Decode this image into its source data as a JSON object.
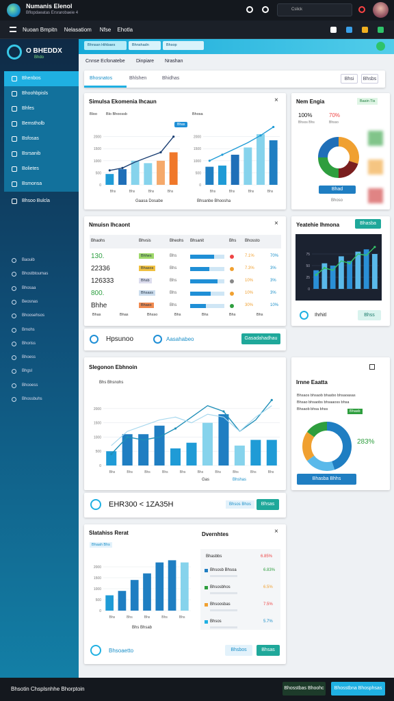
{
  "header": {
    "title": "Numanis Elenol",
    "subtitle": "Bflopdaeatas Ersrarobaeie 4",
    "search": "Cslick"
  },
  "menu": [
    "Nuoan Bmpitn",
    "Nelasatiom",
    "Nfse",
    "Ehotla"
  ],
  "sidebar": {
    "brand": "O BHEDDX",
    "brand_sub": "Bhdo",
    "items": [
      "Bhenbos",
      "Bhoohbpisls",
      "Bhfes",
      "Bemstholb",
      "Bsfosas",
      "Bsrsanib",
      "Bolietes",
      "Bsmonsa",
      "Bhsoo Bulcla"
    ],
    "items2": [
      "Baouib",
      "Bhostbtoumas",
      "Bhosaa",
      "Beosnas",
      "Bhoosehsos",
      "Bmohs",
      "Bhoriss",
      "Bhoess",
      "Bhgsl",
      "Bhooess",
      "Bhossbuhs"
    ]
  },
  "top_tabs": [
    "Bhnsan Hihbaes",
    "Bhnshadn",
    "Bhsop"
  ],
  "breadcrumb": [
    "Cnnse Ecfonatebe",
    "Dinpiare",
    "Nrashan"
  ],
  "tabs": [
    "Bhosnatos",
    "Bhlshen",
    "Bhidhas"
  ],
  "tab_buttons": [
    "Bhsi",
    "Bhsbs"
  ],
  "card1": {
    "title": "Simulsa Ekomenia Ihcaun",
    "left": {
      "label": "Bloo",
      "sublabel": "Blo Bhoossb",
      "ylim": [
        0,
        2500
      ],
      "yticks": [
        0,
        500,
        1000,
        1500,
        2000
      ],
      "bars": [
        450,
        650,
        1000,
        900,
        1000,
        1350
      ],
      "bar_colors": [
        "#1f9bd6",
        "#1f6fb8",
        "#86d3ec",
        "#86d3ec",
        "#f5a96b",
        "#f0782a"
      ],
      "line": [
        600,
        700,
        950,
        1150,
        1350,
        2000
      ],
      "line_color": "#1b3f73",
      "xlabels": [
        "Bhs",
        "Bhs",
        "Bhs",
        "Bhs"
      ],
      "badge": "Bhas",
      "caption": "Gaasa Dosabe"
    },
    "right": {
      "label": "Bhosa",
      "ylim": [
        0,
        2500
      ],
      "yticks": [
        0,
        500,
        1000,
        1500,
        2000
      ],
      "bars": [
        750,
        800,
        1250,
        1550,
        2100,
        1850
      ],
      "bar_colors": [
        "#1f7ec2",
        "#1f9bd6",
        "#1f6fb8",
        "#86d3ec",
        "#86d3ec",
        "#1f7ec2"
      ],
      "line": [
        1000,
        1250,
        1500,
        1750,
        2050,
        2400
      ],
      "line_color": "#1f9bd6",
      "xlabels": [
        "Bhs",
        "Bhs",
        "Bhs",
        "Bhs"
      ],
      "caption": "Bhsanbe Bhoosha"
    }
  },
  "card2": {
    "title": "Nem Engia",
    "badge": "Basin Tis",
    "stats": [
      "100%",
      "70%"
    ],
    "stat_labels": [
      "Bhsos Bhs",
      "Bhsso"
    ],
    "donut": [
      30,
      20,
      25,
      25
    ],
    "donut_colors": [
      "#f0a030",
      "#7a1e1e",
      "#2e9e3e",
      "#1f6fb8"
    ],
    "button": "Bhad",
    "note": "Bhoso"
  },
  "card3": {
    "title": "Nmuisn Ihcaont",
    "headers": [
      "Bhaohs",
      "Bhvsis",
      "Bheohs",
      "Bhsanit",
      "Bhs",
      "Bhossto"
    ],
    "rows": [
      {
        "label": "130.",
        "tag": "Bhhes",
        "code": "Bhs",
        "progress": 70,
        "pct": "7.1%",
        "pct2": "70%"
      },
      {
        "label": "22336",
        "tag": "Bhasos",
        "code": "Bhs",
        "progress": 55,
        "pct": "7.3%",
        "pct2": "3%"
      },
      {
        "label": "126333",
        "tag": "Bhsb",
        "code": "Bhs",
        "progress": 80,
        "pct": "10%",
        "pct2": "3%"
      },
      {
        "label": "800.",
        "tag": "Bhsass",
        "code": "Bhs",
        "progress": 60,
        "pct": "10%",
        "pct2": "3%"
      },
      {
        "label": "Bhhe",
        "tag": "Bhaso",
        "code": "Bhs",
        "progress": 45,
        "pct": "30%",
        "pct2": "10%"
      }
    ],
    "footer": [
      "Bhas",
      "Bhas",
      "Bhsso",
      "Bhs",
      "Bhs",
      "Bhs",
      "Bhs"
    ]
  },
  "card3_bar": {
    "left": "Hpsunoo",
    "right": "Aasahabeo",
    "button": "Gasadahadhau"
  },
  "card4": {
    "title": "Yeatehie Ihmona",
    "button": "Bhasba",
    "chart": {
      "ylim": [
        0,
        100
      ],
      "yticks": [
        0,
        25,
        50,
        75
      ],
      "bars": [
        40,
        55,
        50,
        70,
        60,
        80,
        85,
        75
      ],
      "bar_colors": [
        "#2a8fd6",
        "#5ab9ea",
        "#2a8fd6",
        "#5ab9ea",
        "#2a8fd6",
        "#5ab9ea",
        "#2a8fd6",
        "#5ab9ea"
      ],
      "line": [
        30,
        45,
        40,
        60,
        55,
        75,
        72,
        90
      ],
      "line_color": "#35c46a"
    },
    "footer": "Ihrhitl",
    "footer_button": "Bhss"
  },
  "card5": {
    "title": "Slegonon Ebhnoin",
    "legend": "Bhs Bhsnohs",
    "chart": {
      "ylim": [
        0,
        2500
      ],
      "yticks": [
        0,
        500,
        1000,
        1500,
        2000
      ],
      "bars": [
        500,
        1100,
        1100,
        1400,
        600,
        800,
        1500,
        1800,
        700,
        900,
        900
      ],
      "bar_colors": [
        "#1f9bd6",
        "#1f7ec2",
        "#1f7ec2",
        "#1f7ec2",
        "#1f9bd6",
        "#1f9bd6",
        "#86d3ec",
        "#1f7ec2",
        "#86d3ec",
        "#1f9bd6",
        "#1f9bd6"
      ],
      "line": [
        400,
        1000,
        900,
        1000,
        1300,
        1700,
        2100,
        1900,
        1200,
        1600,
        2300
      ],
      "line_color": "#1f8fb8",
      "line2": [
        700,
        1200,
        1400,
        1600,
        1700,
        1500,
        1800,
        1700,
        1200,
        1700,
        2100
      ],
      "line2_color": "#a8d8ee",
      "xlabels": [
        "Bhs",
        "Bhs",
        "Bhs",
        "Bhs",
        "Bhs",
        "Bhs",
        "Bhs",
        "Bhs",
        "Bhs",
        "Bhs"
      ]
    },
    "captions": [
      "Gas",
      "Bhshas"
    ]
  },
  "card5_bar": {
    "text": "EHR300 < 1ZA35H",
    "pill": "Bhsos Bhos",
    "button": "Bhsas"
  },
  "card6": {
    "title": "Irnne Eaatta",
    "lines": [
      "Bhsaos bhsaob bhasbo bhsaoasas",
      "Bhsao bhsaobs bhsaaoss bhsa",
      "Bhsaob bhsa bhss"
    ],
    "tag": "Bhasb",
    "donut": [
      45,
      20,
      20,
      15
    ],
    "donut_colors": [
      "#1f7ec2",
      "#5ab9ea",
      "#f0a030",
      "#2e9e3e"
    ],
    "value": "283%",
    "button": "Bhasba Bhhs"
  },
  "card7": {
    "title": "Slatahiss Rerat",
    "tag": "Bhaah Bhs",
    "chart": {
      "ylim": [
        0,
        2500
      ],
      "yticks": [
        0,
        500,
        1000,
        1500,
        2000
      ],
      "bars": [
        700,
        900,
        1400,
        1700,
        2200,
        2300,
        2200
      ],
      "bar_colors": [
        "#1f9bd6",
        "#1f7ec2",
        "#1f7ec2",
        "#1f7ec2",
        "#1f7ec2",
        "#1f7ec2",
        "#86d3ec"
      ],
      "xlabels": [
        "Bhs",
        "Bhs",
        "Bhs",
        "Bhs",
        "Bhs"
      ]
    },
    "caption": "Bhs Bhsab",
    "list_title": "Dvernhtes",
    "list_header": [
      "Bhasbbs",
      "6.85%"
    ],
    "list": [
      {
        "name": "Bhsosb Bhsoa",
        "pct": "6.83%"
      },
      {
        "name": "Bhsosbhos",
        "pct": "6.5%"
      },
      {
        "name": "Bhsoosbas",
        "pct": "7.5%"
      },
      {
        "name": "Bhsos",
        "pct": "5.7%"
      }
    ],
    "footer": "Bhsoaetto",
    "buttons": [
      "Bhsbos",
      "Bhsas"
    ]
  },
  "footer": {
    "text": "Bhsotin Chsplsnhhe Bhorptoin",
    "buttons": [
      "Bhosstbas Bhoohc",
      "Bhosstbna Bhosphsas"
    ]
  }
}
